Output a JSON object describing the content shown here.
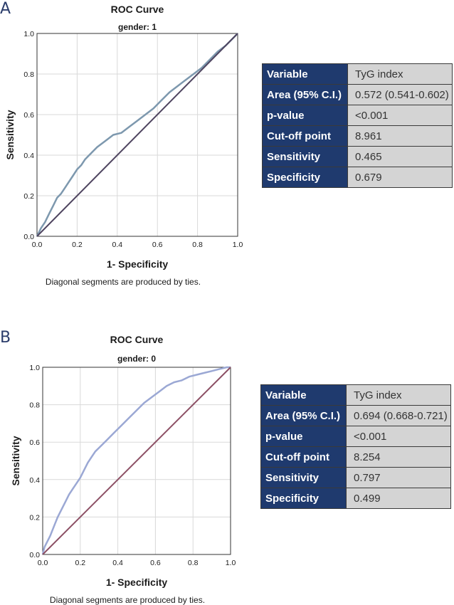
{
  "colors": {
    "panel_letter": "#2b3d6b",
    "table_key_bg": "#1f3a6e",
    "table_value_bg": "#d4d4d4",
    "grid": "#d9d9d9"
  },
  "chart_data": [
    {
      "panel_label": "A",
      "type": "line",
      "title": "ROC Curve",
      "subtitle": "gender: 1",
      "xlabel": "1- Specificity",
      "ylabel": "Sensitivity",
      "note": "Diagonal segments are produced by ties.",
      "xlim": [
        0,
        1
      ],
      "ylim": [
        0,
        1
      ],
      "xticks": [
        "0.0",
        "0.2",
        "0.4",
        "0.6",
        "0.8",
        "1.0"
      ],
      "yticks": [
        "0.0",
        "0.2",
        "0.4",
        "0.6",
        "0.8",
        "1.0"
      ],
      "grid": true,
      "series": [
        {
          "name": "roc",
          "color": "#7d98ae",
          "x": [
            0.0,
            0.02,
            0.04,
            0.06,
            0.08,
            0.1,
            0.12,
            0.14,
            0.16,
            0.18,
            0.2,
            0.22,
            0.24,
            0.26,
            0.28,
            0.3,
            0.34,
            0.38,
            0.42,
            0.46,
            0.5,
            0.54,
            0.58,
            0.62,
            0.66,
            0.7,
            0.74,
            0.78,
            0.82,
            0.86,
            0.9,
            0.94,
            0.98,
            1.0
          ],
          "y": [
            0.0,
            0.04,
            0.07,
            0.11,
            0.15,
            0.19,
            0.21,
            0.24,
            0.27,
            0.3,
            0.33,
            0.35,
            0.38,
            0.4,
            0.42,
            0.44,
            0.47,
            0.5,
            0.51,
            0.54,
            0.57,
            0.6,
            0.63,
            0.67,
            0.71,
            0.74,
            0.77,
            0.8,
            0.83,
            0.87,
            0.91,
            0.94,
            0.98,
            1.0
          ]
        },
        {
          "name": "reference",
          "color": "#4f4560",
          "x": [
            0,
            1
          ],
          "y": [
            0,
            1
          ]
        }
      ]
    },
    {
      "panel_label": "B",
      "type": "line",
      "title": "ROC Curve",
      "subtitle": "gender: 0",
      "xlabel": "1- Specificity",
      "ylabel": "Sensitivity",
      "note": "Diagonal segments are produced by ties.",
      "xlim": [
        0,
        1
      ],
      "ylim": [
        0,
        1
      ],
      "xticks": [
        "0.0",
        "0.2",
        "0.4",
        "0.6",
        "0.8",
        "1.0"
      ],
      "yticks": [
        "0.0",
        "0.2",
        "0.4",
        "0.6",
        "0.8",
        "1.0"
      ],
      "grid": true,
      "series": [
        {
          "name": "roc",
          "color": "#9ba8d4",
          "x": [
            0.0,
            0.01,
            0.02,
            0.04,
            0.06,
            0.08,
            0.1,
            0.12,
            0.14,
            0.16,
            0.18,
            0.2,
            0.22,
            0.24,
            0.26,
            0.28,
            0.3,
            0.34,
            0.38,
            0.42,
            0.46,
            0.5,
            0.54,
            0.58,
            0.62,
            0.66,
            0.7,
            0.74,
            0.78,
            0.82,
            0.86,
            0.9,
            0.94,
            0.98,
            1.0
          ],
          "y": [
            0.0,
            0.04,
            0.06,
            0.1,
            0.15,
            0.2,
            0.24,
            0.28,
            0.32,
            0.35,
            0.38,
            0.41,
            0.45,
            0.49,
            0.52,
            0.55,
            0.57,
            0.61,
            0.65,
            0.69,
            0.73,
            0.77,
            0.81,
            0.84,
            0.87,
            0.9,
            0.92,
            0.93,
            0.95,
            0.96,
            0.97,
            0.98,
            0.99,
            1.0,
            1.0
          ]
        },
        {
          "name": "reference",
          "color": "#8c4f64",
          "x": [
            0,
            1
          ],
          "y": [
            0,
            1
          ]
        }
      ]
    }
  ],
  "tables": {
    "a": {
      "rows": [
        {
          "key": "Variable",
          "value": "TyG index"
        },
        {
          "key": "Area (95% C.I.)",
          "value": "0.572 (0.541-0.602)"
        },
        {
          "key": "p-value",
          "value": "<0.001"
        },
        {
          "key": "Cut-off point",
          "value": "8.961"
        },
        {
          "key": "Sensitivity",
          "value": "0.465"
        },
        {
          "key": "Specificity",
          "value": "0.679"
        }
      ]
    },
    "b": {
      "rows": [
        {
          "key": "Variable",
          "value": "TyG index"
        },
        {
          "key": "Area (95% C.I.)",
          "value": "0.694 (0.668-0.721)"
        },
        {
          "key": "p-value",
          "value": "<0.001"
        },
        {
          "key": "Cut-off point",
          "value": "8.254"
        },
        {
          "key": "Sensitivity",
          "value": "0.797"
        },
        {
          "key": "Specificity",
          "value": "0.499"
        }
      ]
    }
  }
}
